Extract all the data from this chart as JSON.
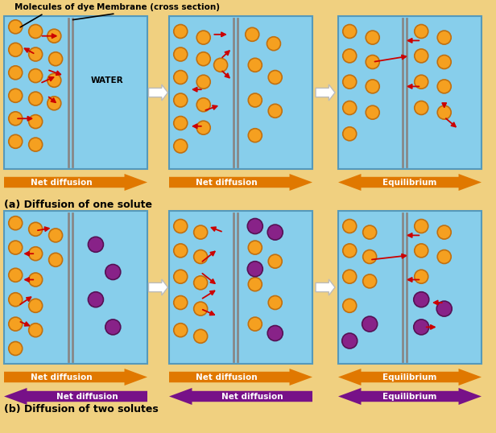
{
  "bg_color": "#F0D080",
  "box_color": "#87CEEB",
  "box_edge_color": "#5599BB",
  "membrane_color": "#888888",
  "orange_color": "#F5A020",
  "orange_edge": "#C07010",
  "purple_color": "#882288",
  "purple_edge": "#551155",
  "arrow_orange_color": "#E07800",
  "arrow_purple_color": "#771188",
  "red_arrow_color": "#CC0000",
  "title_a": "(a) Diffusion of one solute",
  "title_b": "(b) Diffusion of two solutes",
  "label_net_diffusion": "Net diffusion",
  "label_equilibrium": "Equilibrium",
  "label_water": "WATER",
  "label_molecules": "Molecules of dye",
  "label_membrane": "Membrane (cross section)"
}
